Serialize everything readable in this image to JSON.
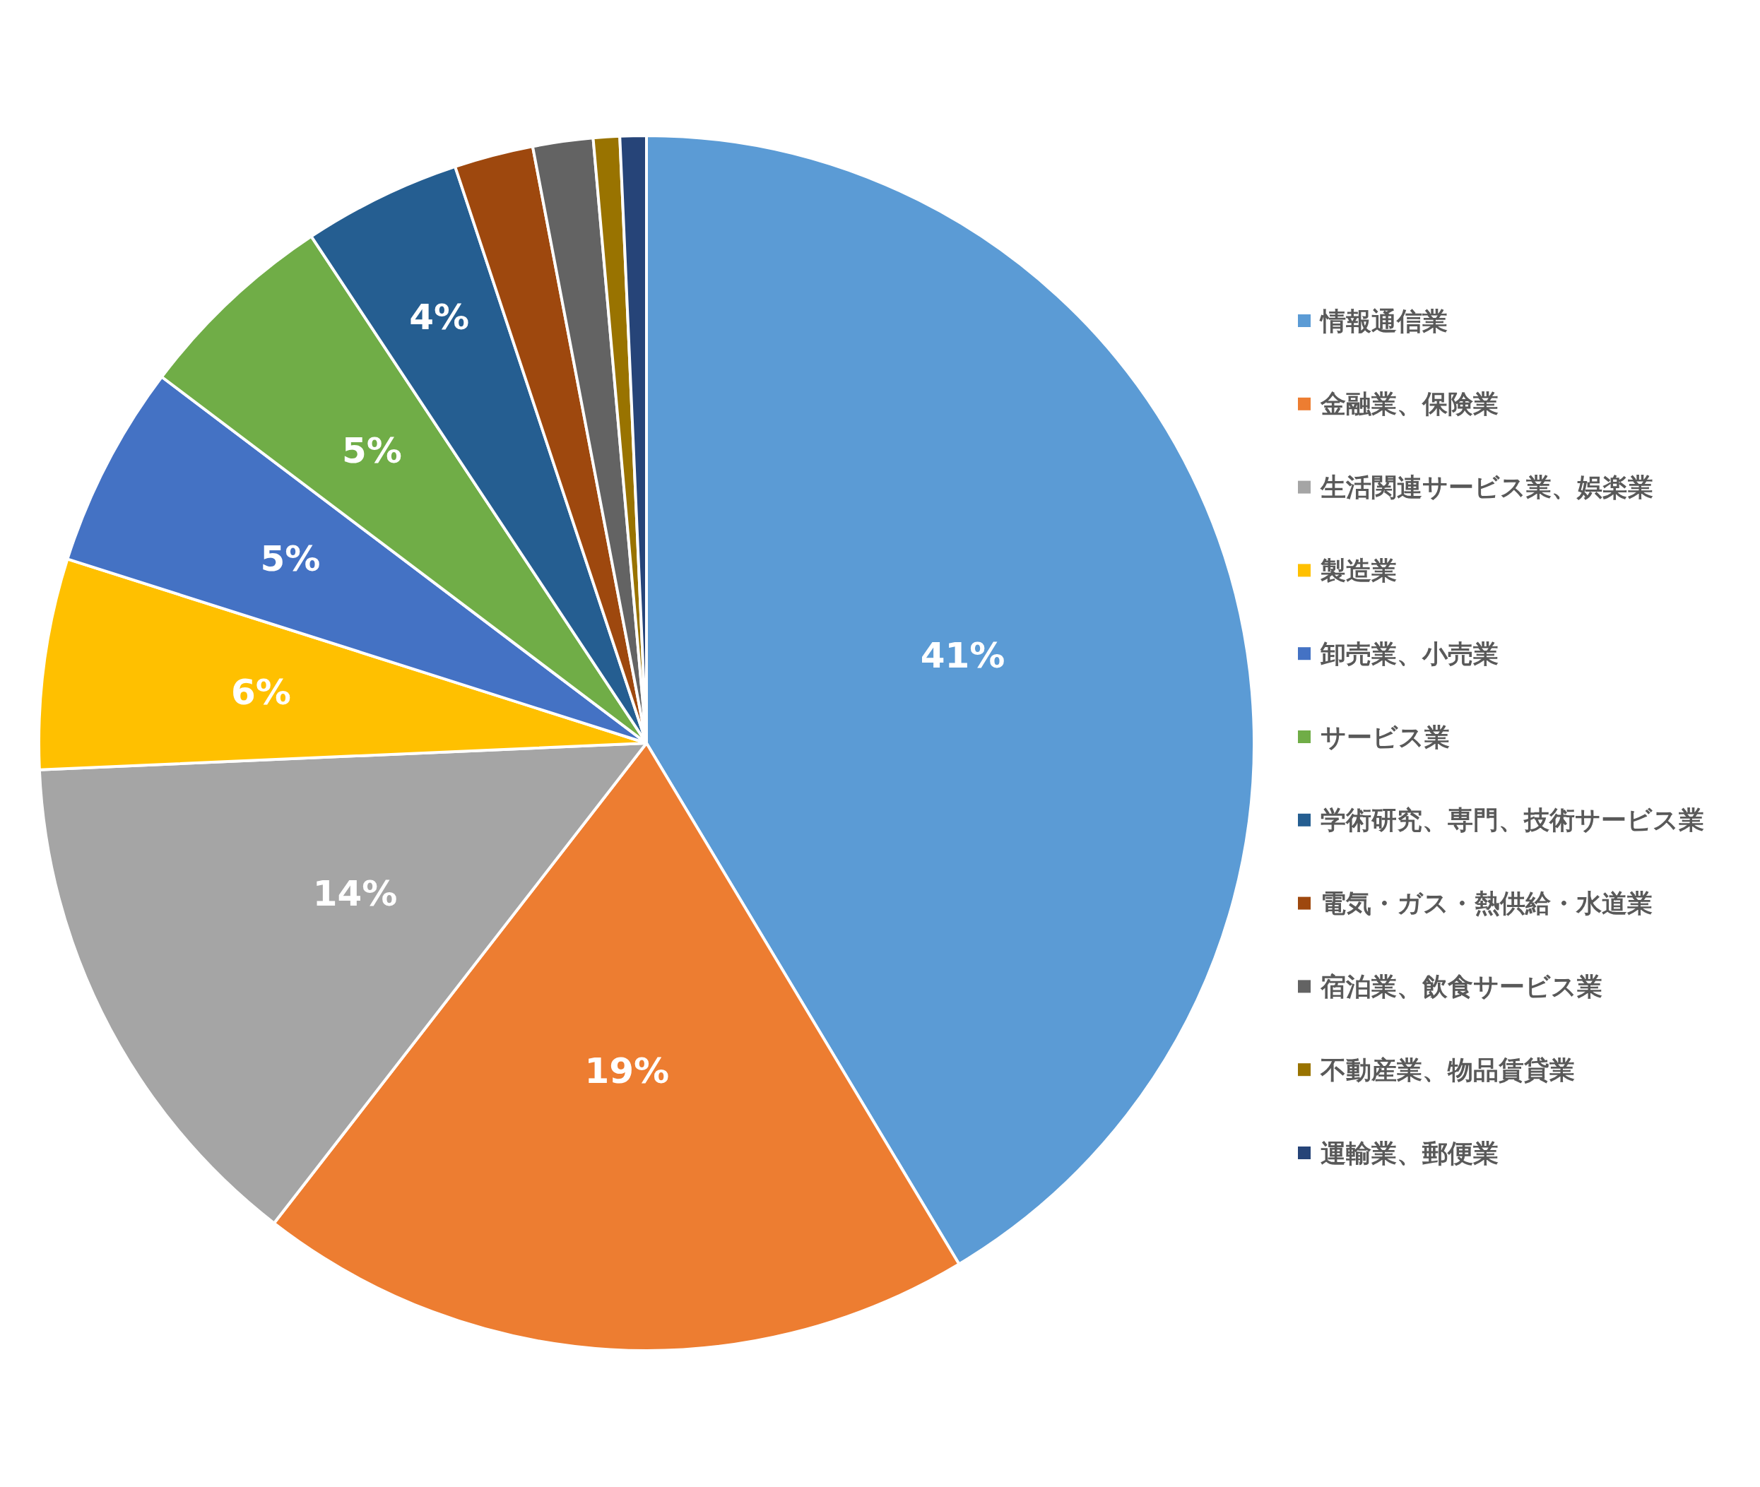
{
  "chart_data": {
    "type": "pie",
    "categories": [
      "情報通信業",
      "金融業、保険業",
      "生活関連サービス業、娯楽業",
      "製造業",
      "卸売業、小売業",
      "サービス業",
      "学術研究、専門、技術サービス業",
      "電気・ガス・熱供給・水道業",
      "宿泊業、飲食サービス業",
      "不動産業、物品賃貸業",
      "運輸業、郵便業"
    ],
    "values": [
      41.4,
      19.1,
      13.8,
      5.6,
      5.4,
      5.4,
      4.2,
      2.1,
      1.6,
      0.7,
      0.7
    ],
    "colors": [
      "#5b9bd5",
      "#ed7d31",
      "#a5a5a5",
      "#ffc000",
      "#4472c4",
      "#70ad47",
      "#255e91",
      "#9e480e",
      "#636363",
      "#997300",
      "#264478"
    ],
    "value_labels": [
      "41%",
      "19%",
      "14%",
      "6%",
      "5%",
      "5%",
      "4%",
      null,
      null,
      null,
      null
    ],
    "legend": "right"
  }
}
